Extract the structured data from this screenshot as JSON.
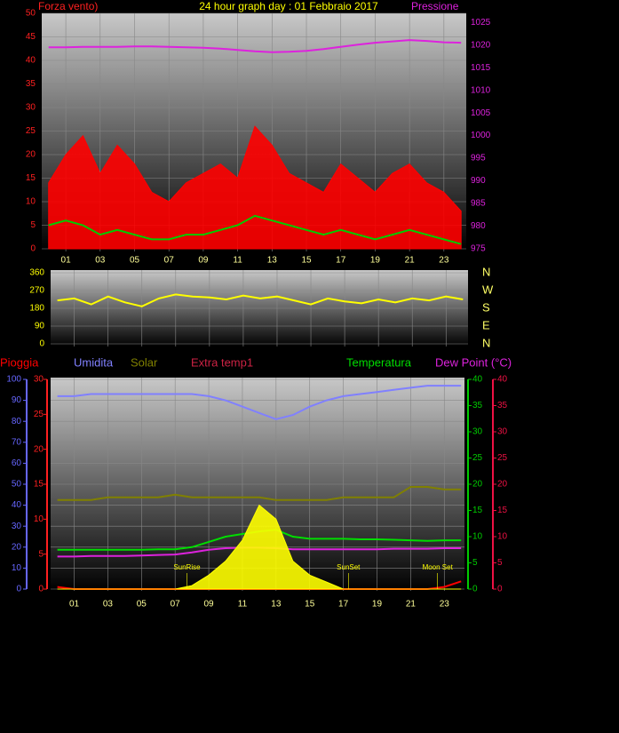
{
  "chart_data": [
    {
      "type": "line",
      "title": "24 hour graph day : 01 Febbraio 2017",
      "left_label": "Forza vento)",
      "right_label": "Pressione",
      "x": [
        0,
        1,
        2,
        3,
        4,
        5,
        6,
        7,
        8,
        9,
        10,
        11,
        12,
        13,
        14,
        15,
        16,
        17,
        18,
        19,
        20,
        21,
        22,
        23,
        24
      ],
      "xlim": [
        -0.4,
        24.3
      ],
      "xticks": [
        {
          "value": 1,
          "label": "01"
        },
        {
          "value": 3,
          "label": "03"
        },
        {
          "value": 5,
          "label": "05"
        },
        {
          "value": 7,
          "label": "07"
        },
        {
          "value": 9,
          "label": "09"
        },
        {
          "value": 11,
          "label": "11"
        },
        {
          "value": 13,
          "label": "13"
        },
        {
          "value": 15,
          "label": "15"
        },
        {
          "value": 17,
          "label": "17"
        },
        {
          "value": 19,
          "label": "19"
        },
        {
          "value": 21,
          "label": "21"
        },
        {
          "value": 23,
          "label": "23"
        }
      ],
      "ylim": [
        0,
        50
      ],
      "yticks": [
        0,
        5,
        10,
        15,
        20,
        25,
        30,
        35,
        40,
        45,
        50
      ],
      "y2lim": [
        975,
        1027
      ],
      "y2ticks": [
        975,
        980,
        985,
        990,
        995,
        1000,
        1005,
        1010,
        1015,
        1020,
        1025
      ],
      "axis_colors": {
        "y": "#ff2020",
        "y2": "#dd22dd"
      },
      "grid": true,
      "series": [
        {
          "color": "#ff0000",
          "fill": true,
          "values": [
            14,
            20,
            24,
            16,
            22,
            18,
            12,
            10,
            14,
            16,
            18,
            15,
            26,
            22,
            16,
            14,
            12,
            18,
            15,
            12,
            16,
            18,
            14,
            12,
            8
          ]
        },
        {
          "color": "#00cc00",
          "values": [
            5,
            6,
            5,
            3,
            4,
            3,
            2,
            2,
            3,
            3,
            4,
            5,
            7,
            6,
            5,
            4,
            3,
            4,
            3,
            2,
            3,
            4,
            3,
            2,
            1
          ]
        },
        {
          "color": "#dd22dd",
          "axis": "y2",
          "values": [
            1019.5,
            1019.5,
            1019.6,
            1019.6,
            1019.6,
            1019.7,
            1019.7,
            1019.6,
            1019.5,
            1019.4,
            1019.2,
            1018.9,
            1018.6,
            1018.4,
            1018.5,
            1018.7,
            1019.1,
            1019.6,
            1020.1,
            1020.5,
            1020.8,
            1021.1,
            1020.9,
            1020.6,
            1020.5
          ]
        }
      ]
    },
    {
      "type": "line",
      "x": [
        0,
        1,
        2,
        3,
        4,
        5,
        6,
        7,
        8,
        9,
        10,
        11,
        12,
        13,
        14,
        15,
        16,
        17,
        18,
        19,
        20,
        21,
        22,
        23,
        24
      ],
      "xlim": [
        -0.4,
        24.3
      ],
      "ylim": [
        0,
        360
      ],
      "yticks": [
        0,
        90,
        180,
        270,
        360
      ],
      "y2lim": [
        0,
        360
      ],
      "y2ticks": [
        {
          "value": 0,
          "label": "N"
        },
        {
          "value": 90,
          "label": "E"
        },
        {
          "value": 180,
          "label": "S"
        },
        {
          "value": 270,
          "label": "W"
        },
        {
          "value": 360,
          "label": "N"
        }
      ],
      "axis_colors": {
        "y": "#ffff00",
        "y2": "#ffff00"
      },
      "grid": true,
      "series": [
        {
          "color": "#ffff00",
          "values": [
            220,
            230,
            200,
            240,
            210,
            190,
            230,
            250,
            240,
            235,
            225,
            245,
            230,
            240,
            220,
            200,
            230,
            215,
            205,
            225,
            210,
            230,
            220,
            240,
            225
          ]
        }
      ]
    },
    {
      "type": "line",
      "x": [
        0,
        1,
        2,
        3,
        4,
        5,
        6,
        7,
        8,
        9,
        10,
        11,
        12,
        13,
        14,
        15,
        16,
        17,
        18,
        19,
        20,
        21,
        22,
        23,
        24
      ],
      "xlim": [
        -0.4,
        24.2
      ],
      "xticks": [
        {
          "value": 1,
          "label": "01"
        },
        {
          "value": 3,
          "label": "03"
        },
        {
          "value": 5,
          "label": "05"
        },
        {
          "value": 7,
          "label": "07"
        },
        {
          "value": 9,
          "label": "09"
        },
        {
          "value": 11,
          "label": "11"
        },
        {
          "value": 13,
          "label": "13"
        },
        {
          "value": 15,
          "label": "15"
        },
        {
          "value": 17,
          "label": "17"
        },
        {
          "value": 19,
          "label": "19"
        },
        {
          "value": 21,
          "label": "21"
        },
        {
          "value": 23,
          "label": "23"
        }
      ],
      "ylim": [
        0,
        100
      ],
      "yticks": [
        0,
        10,
        20,
        30,
        40,
        50,
        60,
        70,
        80,
        90,
        100
      ],
      "y2lim": [
        0,
        30
      ],
      "y2ticks": [
        0,
        5,
        10,
        15,
        20,
        25,
        30
      ],
      "y3lim": [
        0,
        40
      ],
      "y3ticks": [
        0,
        5,
        10,
        15,
        20,
        25,
        30,
        35,
        40
      ],
      "y4lim": [
        0,
        40
      ],
      "y4ticks": [
        0,
        5,
        10,
        15,
        20,
        25,
        30,
        35,
        40
      ],
      "axis_colors": {
        "y": "#6666ff",
        "y2": "#ff2020",
        "y3": "#00cc00",
        "y4": "#ee1144"
      },
      "grid": true,
      "series": [
        {
          "name": "Pioggia",
          "color": "#ff0000",
          "axis": "y2",
          "values": [
            0.3,
            0,
            0,
            0,
            0,
            0,
            0,
            0,
            0,
            0,
            0,
            0,
            0,
            0,
            0,
            0,
            0,
            0,
            0,
            0,
            0,
            0,
            0,
            0.3,
            1.1
          ]
        },
        {
          "name": "Umidita",
          "color": "#8080ff",
          "values": [
            92,
            92,
            93,
            93,
            93,
            93,
            93,
            93,
            93,
            92,
            90,
            87,
            84,
            81,
            83,
            87,
            90,
            92,
            93,
            94,
            95,
            96,
            97,
            97,
            97
          ]
        },
        {
          "name": "Solar",
          "color": "#808000",
          "axis": "y3",
          "values": [
            17,
            17,
            17,
            17.5,
            17.5,
            17.5,
            17.5,
            18,
            17.5,
            17.5,
            17.5,
            17.5,
            17.5,
            17,
            17,
            17,
            17,
            17.5,
            17.5,
            17.5,
            17.5,
            19.5,
            19.5,
            19,
            19
          ]
        },
        {
          "name": "Extra temp1",
          "color": "#cc2244",
          "axis": "y3",
          "values": [
            null,
            null,
            null,
            null,
            null,
            null,
            null,
            null,
            null,
            null,
            null,
            null,
            null,
            null,
            null,
            null,
            null,
            null,
            null,
            null,
            null,
            null,
            null,
            null,
            null
          ]
        },
        {
          "name": "Temperatura",
          "color": "#00dd00",
          "axis": "y3",
          "values": [
            7.5,
            7.5,
            7.5,
            7.5,
            7.5,
            7.5,
            7.6,
            7.6,
            8,
            9,
            10,
            10.5,
            11,
            11.3,
            10,
            9.6,
            9.6,
            9.6,
            9.5,
            9.5,
            9.4,
            9.3,
            9.2,
            9.3,
            9.3
          ]
        },
        {
          "name": "Dew Point (°C)",
          "color": "#dd22dd",
          "axis": "y4",
          "values": [
            6.2,
            6.2,
            6.3,
            6.3,
            6.3,
            6.4,
            6.5,
            6.6,
            7,
            7.5,
            7.8,
            7.9,
            7.9,
            7.8,
            7.6,
            7.6,
            7.6,
            7.6,
            7.6,
            7.6,
            7.7,
            7.7,
            7.7,
            7.8,
            7.8
          ]
        },
        {
          "color": "#ffff00",
          "axis": "y2",
          "fill": true,
          "values": [
            0,
            0,
            0,
            0,
            0,
            0,
            0,
            0,
            0.5,
            2,
            4,
            7,
            12,
            10,
            4,
            2,
            1,
            0,
            0,
            0,
            0,
            0,
            0,
            0,
            0
          ]
        }
      ],
      "annotations": [
        {
          "text": "SunRise",
          "x": 7.7
        },
        {
          "text": "SunSet",
          "x": 17.3
        },
        {
          "text": "Moon Set",
          "x": 22.6
        }
      ]
    }
  ]
}
